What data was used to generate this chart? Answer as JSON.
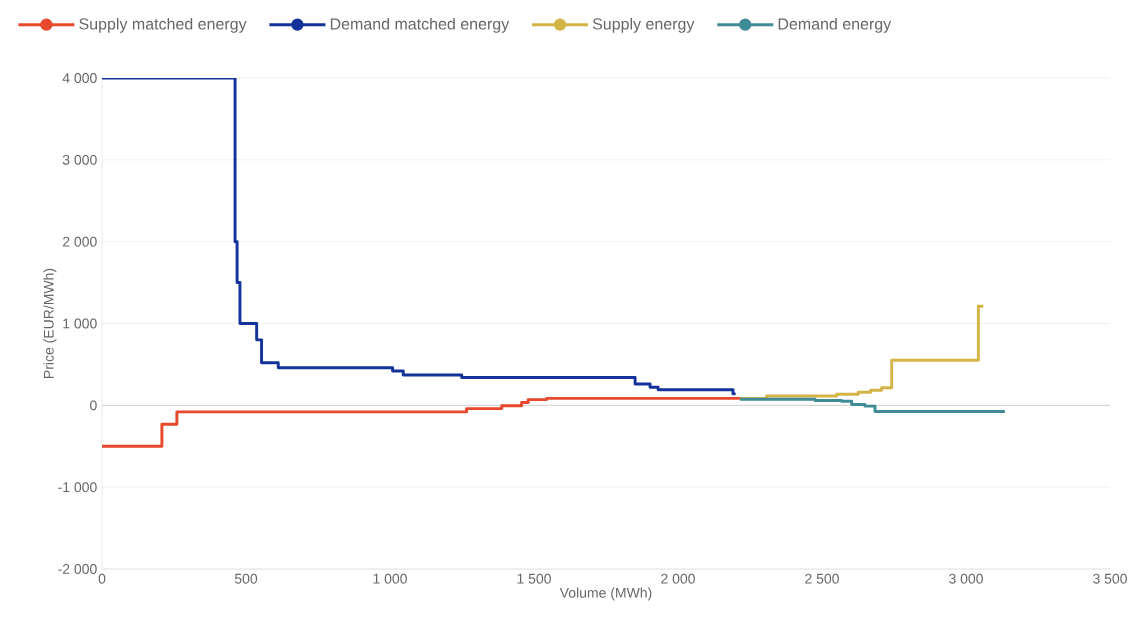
{
  "chart_data": {
    "type": "step",
    "xlabel": "Volume (MWh)",
    "ylabel": "Price (EUR/MWh)",
    "xlim": [
      0,
      3500
    ],
    "ylim": [
      -2000,
      4000
    ],
    "xticks": [
      0,
      500,
      {
        "value": 1000,
        "label": "1 000"
      },
      {
        "value": 1500,
        "label": "1 500"
      },
      {
        "value": 2000,
        "label": "2 000"
      },
      {
        "value": 2500,
        "label": "2 500"
      },
      {
        "value": 3000,
        "label": "3 000"
      },
      {
        "value": 3500,
        "label": "3 500"
      }
    ],
    "yticks": [
      {
        "value": -2000,
        "label": "-2 000"
      },
      {
        "value": -1000,
        "label": "-1 000"
      },
      0,
      {
        "value": 1000,
        "label": "1 000"
      },
      {
        "value": 2000,
        "label": "2 000"
      },
      {
        "value": 3000,
        "label": "3 000"
      },
      {
        "value": 4000,
        "label": "4 000"
      }
    ],
    "grid": "y",
    "legend": "top",
    "series": [
      {
        "name": "Supply matched energy",
        "color": "#e8482c",
        "x": [
          0,
          208,
          260,
          1266,
          1388,
          1457,
          1480,
          1544,
          2215
        ],
        "values": [
          -500,
          -230,
          -80,
          -40,
          -5,
          35,
          70,
          85,
          85
        ]
      },
      {
        "name": "Demand matched energy",
        "color": "#14339a",
        "x": [
          0,
          462,
          469,
          479,
          537,
          554,
          612,
          1009,
          1046,
          1249,
          1851,
          1903,
          1931,
          2191,
          2200
        ],
        "values": [
          4000,
          2000,
          1500,
          1000,
          800,
          520,
          460,
          420,
          370,
          340,
          260,
          220,
          190,
          140,
          140
        ]
      },
      {
        "name": "Supply energy",
        "color": "#d4b446",
        "x": [
          2215,
          2308,
          2551,
          2626,
          2669,
          2707,
          2742,
          3043,
          3060
        ],
        "values": [
          85,
          115,
          135,
          160,
          185,
          215,
          550,
          1210,
          1210
        ]
      },
      {
        "name": "Demand energy",
        "color": "#3f8c96",
        "x": [
          2215,
          2476,
          2568,
          2603,
          2649,
          2684,
          3135
        ],
        "values": [
          75,
          60,
          50,
          10,
          -10,
          -75,
          -75
        ]
      }
    ]
  }
}
